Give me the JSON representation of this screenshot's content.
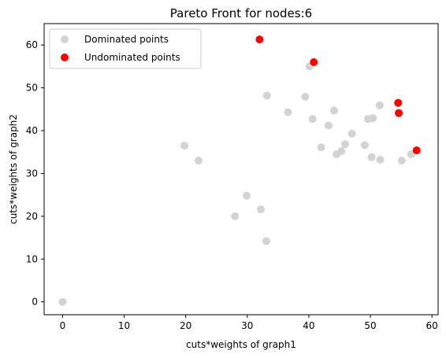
{
  "chart_data": {
    "type": "scatter",
    "title": "Pareto Front for nodes:6",
    "xlabel": "cuts*weights of graph1",
    "ylabel": "cuts*weights of graph2",
    "xlim": [
      -3,
      61
    ],
    "ylim": [
      -3,
      65
    ],
    "xticks": [
      0,
      10,
      20,
      30,
      40,
      50,
      60
    ],
    "yticks": [
      0,
      10,
      20,
      30,
      40,
      50,
      60
    ],
    "grid": false,
    "legend_position": "top-left",
    "series": [
      {
        "name": "Dominated points",
        "color": "#d3d3d3",
        "points": [
          [
            0,
            0
          ],
          [
            19.8,
            36.5
          ],
          [
            22.1,
            33.0
          ],
          [
            28.0,
            20.0
          ],
          [
            29.9,
            24.8
          ],
          [
            32.2,
            21.6
          ],
          [
            33.1,
            14.2
          ],
          [
            33.2,
            48.2
          ],
          [
            36.6,
            44.3
          ],
          [
            39.4,
            47.9
          ],
          [
            40.1,
            55.0
          ],
          [
            40.6,
            42.7
          ],
          [
            42.0,
            36.1
          ],
          [
            43.2,
            41.2
          ],
          [
            44.1,
            44.7
          ],
          [
            44.5,
            34.5
          ],
          [
            45.3,
            35.2
          ],
          [
            45.9,
            36.8
          ],
          [
            47.0,
            39.3
          ],
          [
            49.1,
            36.6
          ],
          [
            49.6,
            42.7
          ],
          [
            50.2,
            33.8
          ],
          [
            50.4,
            42.9
          ],
          [
            51.5,
            45.9
          ],
          [
            51.6,
            33.2
          ],
          [
            55.1,
            33.0
          ],
          [
            56.6,
            34.5
          ]
        ]
      },
      {
        "name": "Undominated points",
        "color": "#ff0000",
        "points": [
          [
            32.0,
            61.3
          ],
          [
            40.8,
            56.0
          ],
          [
            54.5,
            46.5
          ],
          [
            54.6,
            44.1
          ],
          [
            57.5,
            35.4
          ]
        ]
      }
    ]
  }
}
